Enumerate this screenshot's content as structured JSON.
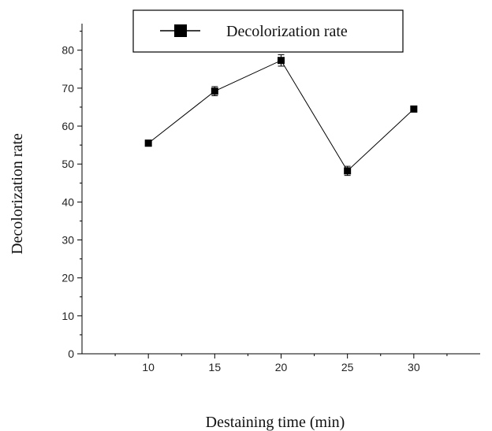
{
  "chart_data": {
    "type": "line",
    "title": "",
    "xlabel": "Destaining time (min)",
    "ylabel": "Decolorization rate",
    "x": [
      10,
      15,
      20,
      25,
      30
    ],
    "x_ticks": [
      "10",
      "15",
      "20",
      "25",
      "30"
    ],
    "y_ticks": [
      "0",
      "10",
      "20",
      "30",
      "40",
      "50",
      "60",
      "70",
      "80"
    ],
    "xlim": [
      5,
      35
    ],
    "ylim": [
      0,
      87
    ],
    "grid": false,
    "legend_position": "top-center",
    "series": [
      {
        "name": "Decolorization rate",
        "values": [
          55.5,
          69.2,
          77.3,
          48.2,
          64.5
        ],
        "errors": [
          0.8,
          1.2,
          1.5,
          1.2,
          0.8
        ],
        "color": "#000000",
        "marker": "square"
      }
    ]
  }
}
